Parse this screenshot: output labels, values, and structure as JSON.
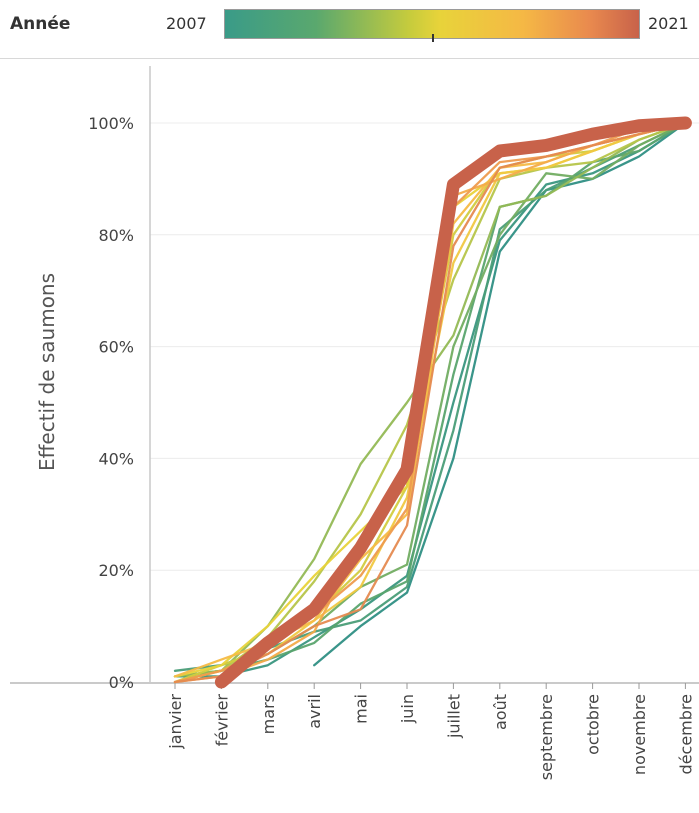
{
  "legend": {
    "title": "Année",
    "min_label": "2007",
    "max_label": "2021"
  },
  "colors": {
    "2007": "#2f8f84",
    "2008": "#3a9680",
    "2009": "#4a9d78",
    "2010": "#5aa46e",
    "2011": "#72ad62",
    "2012": "#94b955",
    "2013": "#b6c54a",
    "2014": "#d2cc40",
    "2015": "#e8d33a",
    "2016": "#f0c842",
    "2017": "#f5bb46",
    "2018": "#f3ab4a",
    "2019": "#ee9b4e",
    "2020": "#e58a50",
    "2021": "#c8624a"
  },
  "chart_data": {
    "type": "line",
    "ylabel": "Effectif de saumons",
    "xlabel": "",
    "categories": [
      "janvier",
      "février",
      "mars",
      "avril",
      "mai",
      "juin",
      "juillet",
      "août",
      "septembre",
      "octobre",
      "novembre",
      "décembre"
    ],
    "ylim": [
      0,
      100
    ],
    "yticks": [
      "0%",
      "20%",
      "40%",
      "60%",
      "80%",
      "100%"
    ],
    "grid": true,
    "legend": "top color gradient",
    "series": [
      {
        "year": "2007",
        "values": [
          null,
          null,
          null,
          3,
          10,
          16,
          40,
          77,
          88,
          90,
          94,
          100
        ]
      },
      {
        "year": "2008",
        "values": [
          1,
          1,
          3,
          8,
          13,
          19,
          50,
          79,
          89,
          91,
          95,
          100
        ]
      },
      {
        "year": "2009",
        "values": [
          2,
          3,
          6,
          9,
          11,
          17,
          45,
          81,
          88,
          92,
          96,
          100
        ]
      },
      {
        "year": "2010",
        "values": [
          1,
          2,
          4,
          7,
          14,
          18,
          55,
          85,
          87,
          93,
          95,
          100
        ]
      },
      {
        "year": "2011",
        "values": [
          1,
          2,
          5,
          10,
          17,
          21,
          60,
          80,
          91,
          90,
          96,
          100
        ]
      },
      {
        "year": "2012",
        "values": [
          1,
          2,
          10,
          22,
          39,
          50,
          62,
          85,
          87,
          92,
          97,
          100
        ]
      },
      {
        "year": "2013",
        "values": [
          0,
          2,
          8,
          18,
          30,
          46,
          72,
          90,
          92,
          93,
          97,
          100
        ]
      },
      {
        "year": "2014",
        "values": [
          0,
          3,
          6,
          12,
          20,
          35,
          80,
          92,
          94,
          95,
          98,
          100
        ]
      },
      {
        "year": "2015",
        "values": [
          1,
          3,
          10,
          19,
          27,
          35,
          85,
          91,
          92,
          95,
          98,
          100
        ]
      },
      {
        "year": "2016",
        "values": [
          0,
          2,
          5,
          11,
          17,
          33,
          75,
          91,
          92,
          95,
          98,
          100
        ]
      },
      {
        "year": "2017",
        "values": [
          1,
          4,
          7,
          11,
          22,
          30,
          82,
          92,
          93,
          96,
          98,
          100
        ]
      },
      {
        "year": "2018",
        "values": [
          0,
          1,
          4,
          9,
          25,
          36,
          87,
          90,
          93,
          96,
          98,
          100
        ]
      },
      {
        "year": "2019",
        "values": [
          0,
          2,
          6,
          12,
          19,
          31,
          85,
          93,
          94,
          96,
          99,
          100
        ]
      },
      {
        "year": "2020",
        "values": [
          0,
          1,
          5,
          10,
          13,
          28,
          78,
          92,
          94,
          96,
          98,
          100
        ]
      },
      {
        "year": "2021",
        "values": [
          null,
          0,
          7,
          13,
          24,
          38,
          89,
          95,
          96,
          98,
          99.5,
          100
        ]
      }
    ]
  }
}
